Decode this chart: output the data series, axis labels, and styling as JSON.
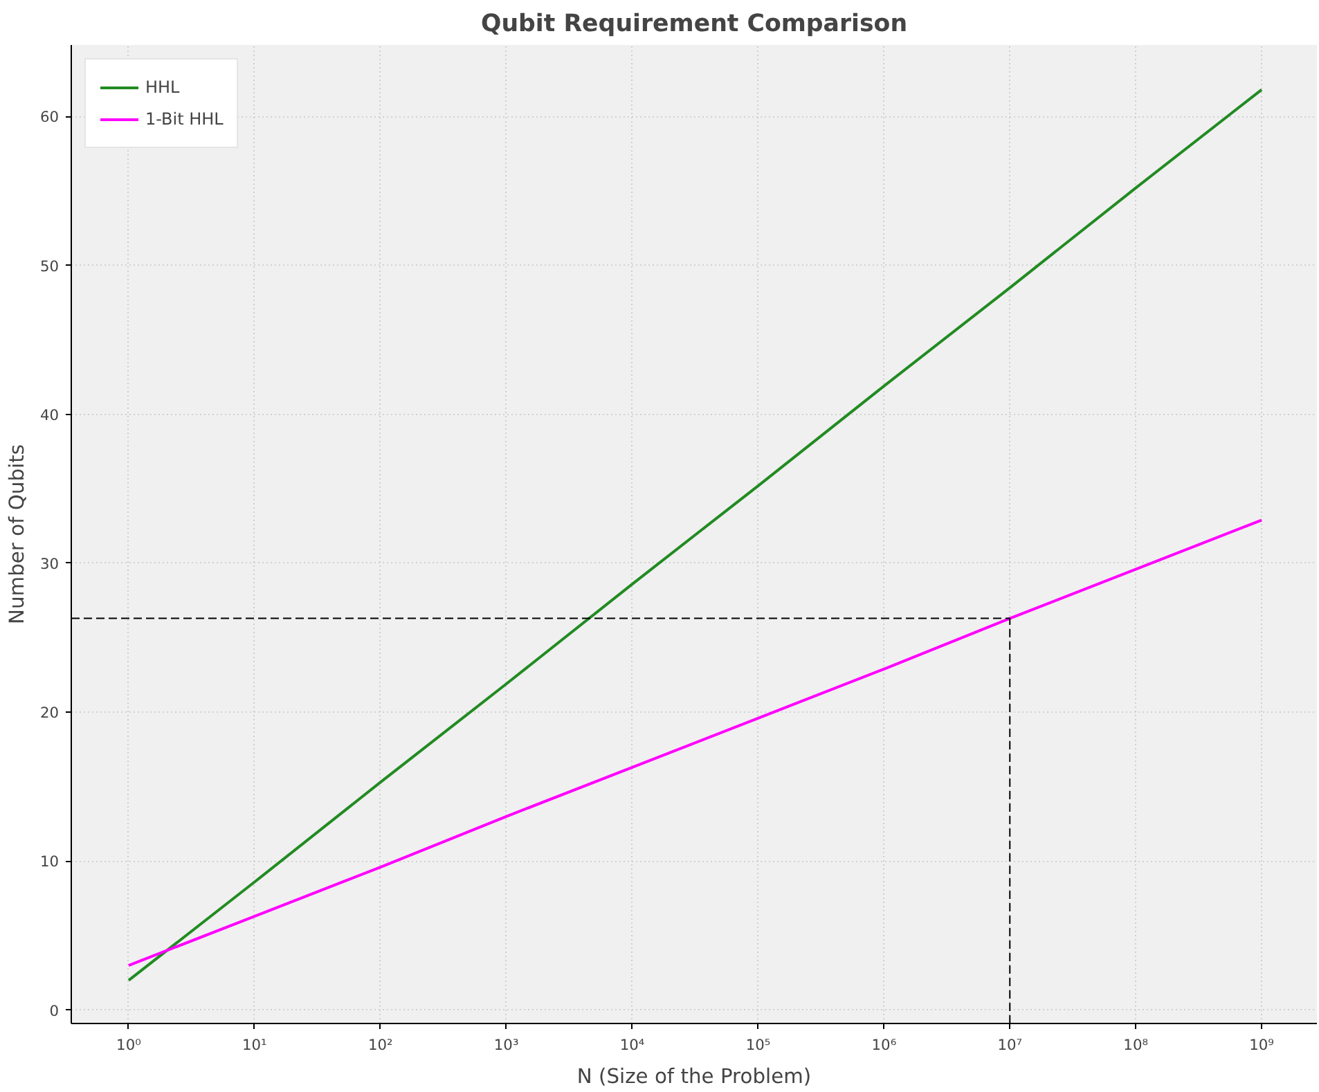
{
  "chart_data": {
    "type": "line",
    "title": "Qubit Requirement Comparison",
    "xlabel": "N (Size of the Problem)",
    "ylabel": "Number of Qubits",
    "log": "x",
    "x": [
      1,
      10,
      100,
      1000,
      10000,
      100000,
      1000000,
      10000000,
      100000000,
      1000000000
    ],
    "series": [
      {
        "name": "HHL",
        "color": "#228b22",
        "values": [
          2,
          8.6,
          15.3,
          21.9,
          28.6,
          35.2,
          41.9,
          48.5,
          55.2,
          61.8
        ]
      },
      {
        "name": "1-Bit HHL",
        "color": "#ff00ff",
        "values": [
          3,
          6.3,
          9.6,
          13,
          16.3,
          19.6,
          22.9,
          26.3,
          29.6,
          32.9
        ]
      }
    ],
    "xlim": [
      0.35,
      2750000000
    ],
    "ylim": [
      -0.9,
      64.8
    ],
    "xticks": [
      {
        "value": 1,
        "label": "10⁰"
      },
      {
        "value": 10,
        "label": "10¹"
      },
      {
        "value": 100,
        "label": "10²"
      },
      {
        "value": 1000,
        "label": "10³"
      },
      {
        "value": 10000,
        "label": "10⁴"
      },
      {
        "value": 100000,
        "label": "10⁵"
      },
      {
        "value": 1000000,
        "label": "10⁶"
      },
      {
        "value": 10000000,
        "label": "10⁷"
      },
      {
        "value": 100000000,
        "label": "10⁸"
      },
      {
        "value": 1000000000,
        "label": "10⁹"
      }
    ],
    "yticks": [
      0,
      10,
      20,
      30,
      40,
      50,
      60
    ],
    "ref_lines": [
      {
        "axis": "x",
        "value": 10000000,
        "color": "#000000",
        "line_style": "dashed"
      },
      {
        "axis": "y",
        "value": 26.3,
        "color": "#000000",
        "line_style": "dashed"
      }
    ],
    "grid": true,
    "legend": "top left",
    "line_style": "solid",
    "marker": "none"
  }
}
